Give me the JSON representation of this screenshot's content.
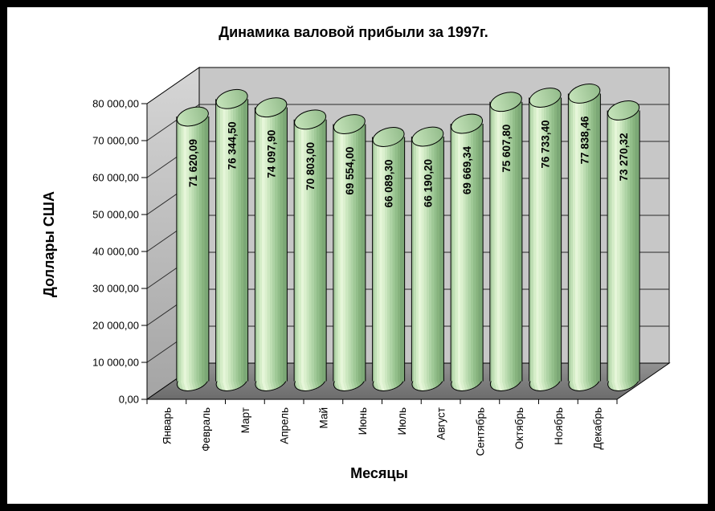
{
  "frame": {
    "background": "#ffffff",
    "border_color": "#000000"
  },
  "chart_data": {
    "type": "bar",
    "subtype": "3d-cylinder",
    "title": "Динамика валовой прибыли за 1997г.",
    "xlabel": "Месяцы",
    "ylabel": "Доллары США",
    "categories": [
      "Январь",
      "Февраль",
      "Март",
      "Апрель",
      "Май",
      "Июнь",
      "Июль",
      "Август",
      "Сентябрь",
      "Октябрь",
      "Ноябрь",
      "Декабрь"
    ],
    "values": [
      71620.09,
      76344.5,
      74097.9,
      70803.0,
      69554.0,
      66089.3,
      66190.2,
      69669.34,
      75607.8,
      76733.4,
      77838.46,
      73270.32
    ],
    "value_labels": [
      "71 620,09",
      "76 344,50",
      "74 097,90",
      "70 803,00",
      "69 554,00",
      "66 089,30",
      "66 190,20",
      "69 669,34",
      "75 607,80",
      "76 733,40",
      "77 838,46",
      "73 270,32"
    ],
    "y_ticks": [
      "0,00",
      "10 000,00",
      "20 000,00",
      "30 000,00",
      "40 000,00",
      "50 000,00",
      "60 000,00",
      "70 000,00",
      "80 000,00"
    ],
    "ylim": [
      0,
      80000
    ],
    "y_step": 10000,
    "grid": true,
    "legend": false,
    "colors": {
      "outline": "#000000",
      "gridline": "#2a2a2a",
      "back_wall": "#c7c7c7",
      "left_wall_light": "#d6d6d6",
      "left_wall_dark": "#a4a4a4",
      "floor_light": "#939393",
      "floor_dark": "#6b6b6b",
      "bar_top_light": "#c6e4bb",
      "bar_top_dark": "#93bc8b",
      "bar_bands": [
        [
          0,
          "#a6c99d"
        ],
        [
          6,
          "#c0dfb5"
        ],
        [
          14,
          "#d5edc8"
        ],
        [
          22,
          "#e6f6d9"
        ],
        [
          30,
          "#dbf0ce"
        ],
        [
          38,
          "#cce7c0"
        ],
        [
          46,
          "#bdddb2"
        ],
        [
          54,
          "#aed3a5"
        ],
        [
          62,
          "#a0c997"
        ],
        [
          70,
          "#92be8a"
        ],
        [
          78,
          "#87b37e"
        ],
        [
          86,
          "#7ca876"
        ],
        [
          100,
          "#7ca876"
        ]
      ],
      "text": "#000000"
    }
  }
}
